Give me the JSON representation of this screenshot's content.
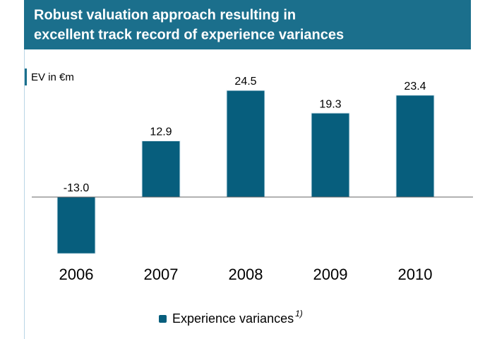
{
  "chart_data": {
    "type": "bar",
    "title": [
      "Robust valuation approach resulting in",
      "excellent track record of experience variances"
    ],
    "y_label": "EV in €m",
    "categories": [
      "2006",
      "2007",
      "2008",
      "2009",
      "2010"
    ],
    "series": [
      {
        "name": "Experience variances",
        "note": "1)",
        "color": "#075e7d",
        "values": [
          -13.0,
          12.9,
          24.5,
          19.3,
          23.4
        ],
        "value_labels": [
          "-13.0",
          "12.9",
          "24.5",
          "19.3",
          "23.4"
        ]
      }
    ]
  }
}
